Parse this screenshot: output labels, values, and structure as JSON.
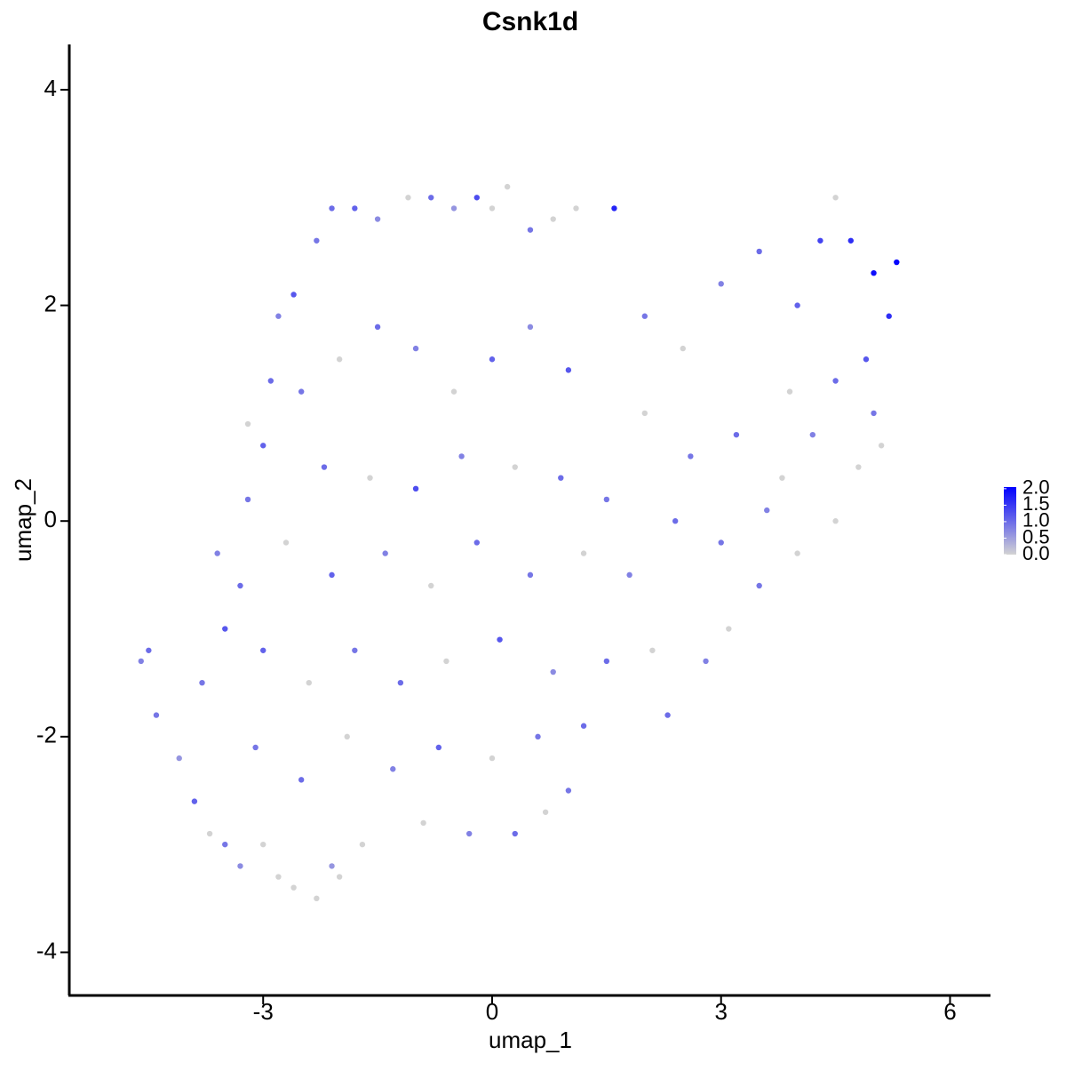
{
  "chart_data": {
    "type": "scatter",
    "title": "Csnk1d",
    "x_label": "umap_1",
    "y_label": "umap_2",
    "xlim": [
      -5.54,
      6.53
    ],
    "ylim": [
      -4.4,
      4.42
    ],
    "xticks": [
      -3,
      0,
      3,
      6
    ],
    "yticks": [
      -4,
      -2,
      0,
      2,
      4
    ],
    "grid": false,
    "colors": [
      "#d3d3d3",
      "#0000ff"
    ],
    "clim": [
      0,
      2.05
    ],
    "cticks": [
      {
        "value": 0,
        "label": "0.0"
      },
      {
        "value": 0.5,
        "label": "0.5"
      },
      {
        "value": 1,
        "label": "1.0"
      },
      {
        "value": 1.5,
        "label": "1.5"
      },
      {
        "value": 2,
        "label": "2.0"
      }
    ],
    "x": [
      -4.6,
      -4.5,
      -4.4,
      -4.1,
      -3.9,
      -3.7,
      -3.5,
      -3.3,
      -3.0,
      -2.8,
      -2.6,
      -2.3,
      -2.1,
      -2.0,
      -1.7,
      -3.8,
      -3.5,
      -3.6,
      -3.3,
      -3.2,
      -3.0,
      -3.2,
      -2.9,
      -2.8,
      -2.6,
      -2.3,
      -2.1,
      -1.8,
      -1.5,
      -1.1,
      -0.8,
      -0.5,
      -0.2,
      0.0,
      0.2,
      0.5,
      0.8,
      1.1,
      1.6,
      -2.5,
      -2.0,
      -1.5,
      -1.0,
      -0.5,
      0.0,
      0.5,
      1.0,
      -2.2,
      -1.6,
      -1.0,
      -0.4,
      0.3,
      0.9,
      1.5,
      -2.7,
      -2.1,
      -1.4,
      -0.8,
      -0.2,
      0.5,
      1.2,
      1.8,
      -3.0,
      -2.4,
      -1.8,
      -1.2,
      -0.6,
      0.1,
      0.8,
      1.5,
      2.1,
      -3.1,
      -2.5,
      -1.9,
      -1.3,
      -0.7,
      0.0,
      0.6,
      1.2,
      -0.9,
      -0.3,
      0.3,
      0.7,
      1.0,
      2.3,
      2.8,
      3.1,
      3.5,
      4.0,
      4.5,
      2.0,
      2.5,
      3.0,
      3.5,
      3.9,
      4.0,
      4.3,
      4.5,
      4.7,
      5.0,
      5.3,
      5.2,
      4.9,
      5.0,
      5.1,
      4.5,
      4.2,
      3.8,
      3.2,
      2.6,
      2.0,
      2.4,
      3.0,
      3.6,
      4.8
    ],
    "y": [
      -1.3,
      -1.2,
      -1.8,
      -2.2,
      -2.6,
      -2.9,
      -3.0,
      -3.2,
      -3.0,
      -3.3,
      -3.4,
      -3.5,
      -3.2,
      -3.3,
      -3.0,
      -1.5,
      -1.0,
      -0.3,
      -0.6,
      0.2,
      0.7,
      0.9,
      1.3,
      1.9,
      2.1,
      2.6,
      2.9,
      2.9,
      2.8,
      3.0,
      3.0,
      2.9,
      3.0,
      2.9,
      3.1,
      2.7,
      2.8,
      2.9,
      2.9,
      1.2,
      1.5,
      1.8,
      1.6,
      1.2,
      1.5,
      1.8,
      1.4,
      0.5,
      0.4,
      0.3,
      0.6,
      0.5,
      0.4,
      0.2,
      -0.2,
      -0.5,
      -0.3,
      -0.6,
      -0.2,
      -0.5,
      -0.3,
      -0.5,
      -1.2,
      -1.5,
      -1.2,
      -1.5,
      -1.3,
      -1.1,
      -1.4,
      -1.3,
      -1.2,
      -2.1,
      -2.4,
      -2.0,
      -2.3,
      -2.1,
      -2.2,
      -2.0,
      -1.9,
      -2.8,
      -2.9,
      -2.9,
      -2.7,
      -2.5,
      -1.8,
      -1.3,
      -1.0,
      -0.6,
      -0.3,
      0.0,
      1.9,
      1.6,
      2.2,
      2.5,
      1.2,
      2.0,
      2.6,
      3.0,
      2.6,
      2.3,
      2.4,
      1.9,
      1.5,
      1.0,
      0.7,
      1.3,
      0.8,
      0.4,
      0.8,
      0.6,
      1.0,
      0.0,
      -0.2,
      0.1,
      0.5
    ],
    "values": [
      0.8,
      1.0,
      0.9,
      0.6,
      1.1,
      0,
      0.9,
      0.7,
      0,
      0,
      0,
      0,
      0.6,
      0,
      0,
      0.9,
      1.2,
      0.8,
      1.0,
      0.9,
      1.1,
      0,
      1.0,
      0.8,
      1.2,
      0.9,
      1.0,
      1.1,
      0.7,
      0,
      1.0,
      0.6,
      1.3,
      0,
      0,
      0.9,
      0,
      0,
      1.7,
      0.9,
      0,
      1.0,
      0.8,
      0,
      1.1,
      0.7,
      1.2,
      1.0,
      0,
      1.3,
      0.8,
      0,
      1.0,
      0.9,
      0,
      1.1,
      0.8,
      0,
      1.0,
      0.9,
      0,
      0.8,
      1.1,
      0,
      0.9,
      1.0,
      0,
      1.2,
      0.7,
      1.0,
      0,
      0.9,
      1.0,
      0,
      0.8,
      1.1,
      0,
      0.9,
      1.0,
      0,
      0.8,
      1.0,
      0,
      0.9,
      1.0,
      0.8,
      0,
      0.9,
      0,
      0,
      0.9,
      0,
      0.8,
      1.0,
      0,
      1.1,
      1.4,
      0,
      1.6,
      1.9,
      2.0,
      1.6,
      1.2,
      0.9,
      0,
      1.0,
      0.8,
      0,
      1.0,
      0.9,
      0,
      1.0,
      0.9,
      0.8,
      0
    ]
  }
}
